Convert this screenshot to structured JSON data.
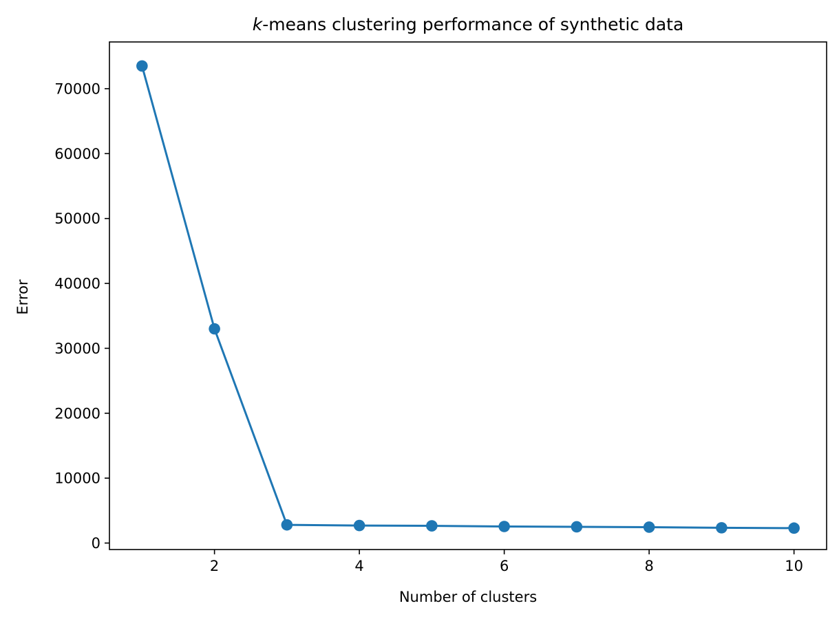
{
  "chart_data": {
    "type": "line",
    "title_k": "k",
    "title_rest": "-means clustering performance of synthetic data",
    "xlabel": "Number of clusters",
    "ylabel": "Error",
    "xlim": [
      0.55,
      10.45
    ],
    "ylim": [
      -1000,
      77200
    ],
    "xticks": [
      2,
      4,
      6,
      8,
      10
    ],
    "xtick_labels": [
      "2",
      "4",
      "6",
      "8",
      "10"
    ],
    "yticks": [
      0,
      10000,
      20000,
      30000,
      40000,
      50000,
      60000,
      70000
    ],
    "ytick_labels": [
      "0",
      "10000",
      "20000",
      "30000",
      "40000",
      "50000",
      "60000",
      "70000"
    ],
    "grid": false,
    "series": [
      {
        "color": "#1f77b4",
        "marker": "circle",
        "x": [
          1,
          2,
          3,
          4,
          5,
          6,
          7,
          8,
          9,
          10
        ],
        "y": [
          73500,
          33000,
          2800,
          2700,
          2650,
          2550,
          2500,
          2450,
          2350,
          2300
        ]
      }
    ]
  }
}
